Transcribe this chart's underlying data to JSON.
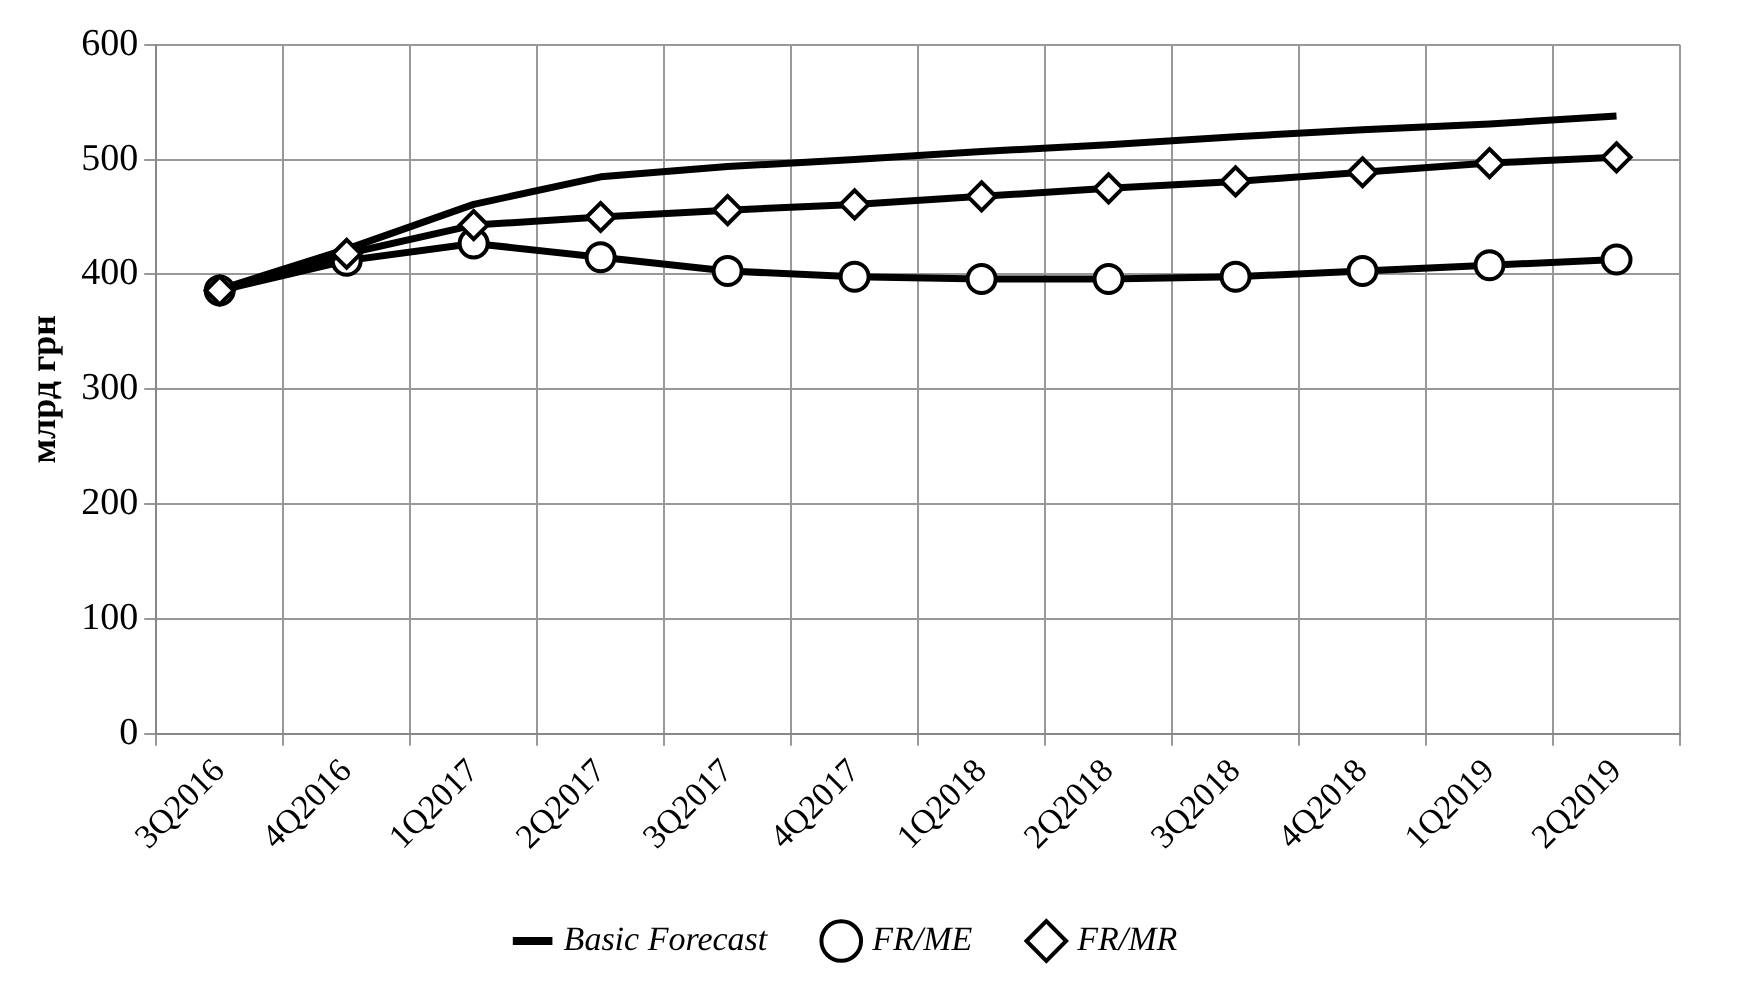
{
  "chart_data": {
    "type": "line",
    "ylabel": "млрд грн",
    "categories": [
      "3Q2016",
      "4Q2016",
      "1Q2017",
      "2Q2017",
      "3Q2017",
      "4Q2017",
      "1Q2018",
      "2Q2018",
      "3Q2018",
      "4Q2018",
      "1Q2019",
      "2Q2019"
    ],
    "series": [
      {
        "name": "Basic Forecast",
        "color": "#000000",
        "marker": "none",
        "values": [
          387,
          422,
          461,
          485,
          494,
          500,
          507,
          513,
          520,
          526,
          531,
          538
        ]
      },
      {
        "name": "FR/ME",
        "color": "#000000",
        "marker": "circle",
        "values": [
          386,
          412,
          427,
          415,
          403,
          398,
          396,
          396,
          398,
          403,
          408,
          413
        ]
      },
      {
        "name": "FR/MR",
        "color": "#000000",
        "marker": "diamond",
        "values": [
          386,
          418,
          443,
          450,
          456,
          461,
          468,
          475,
          481,
          489,
          497,
          502
        ]
      }
    ],
    "ylim": [
      0,
      600
    ],
    "yticks": [
      0,
      100,
      200,
      300,
      400,
      500,
      600
    ],
    "grid": true,
    "legend": "bottom",
    "line_style": "solid"
  }
}
